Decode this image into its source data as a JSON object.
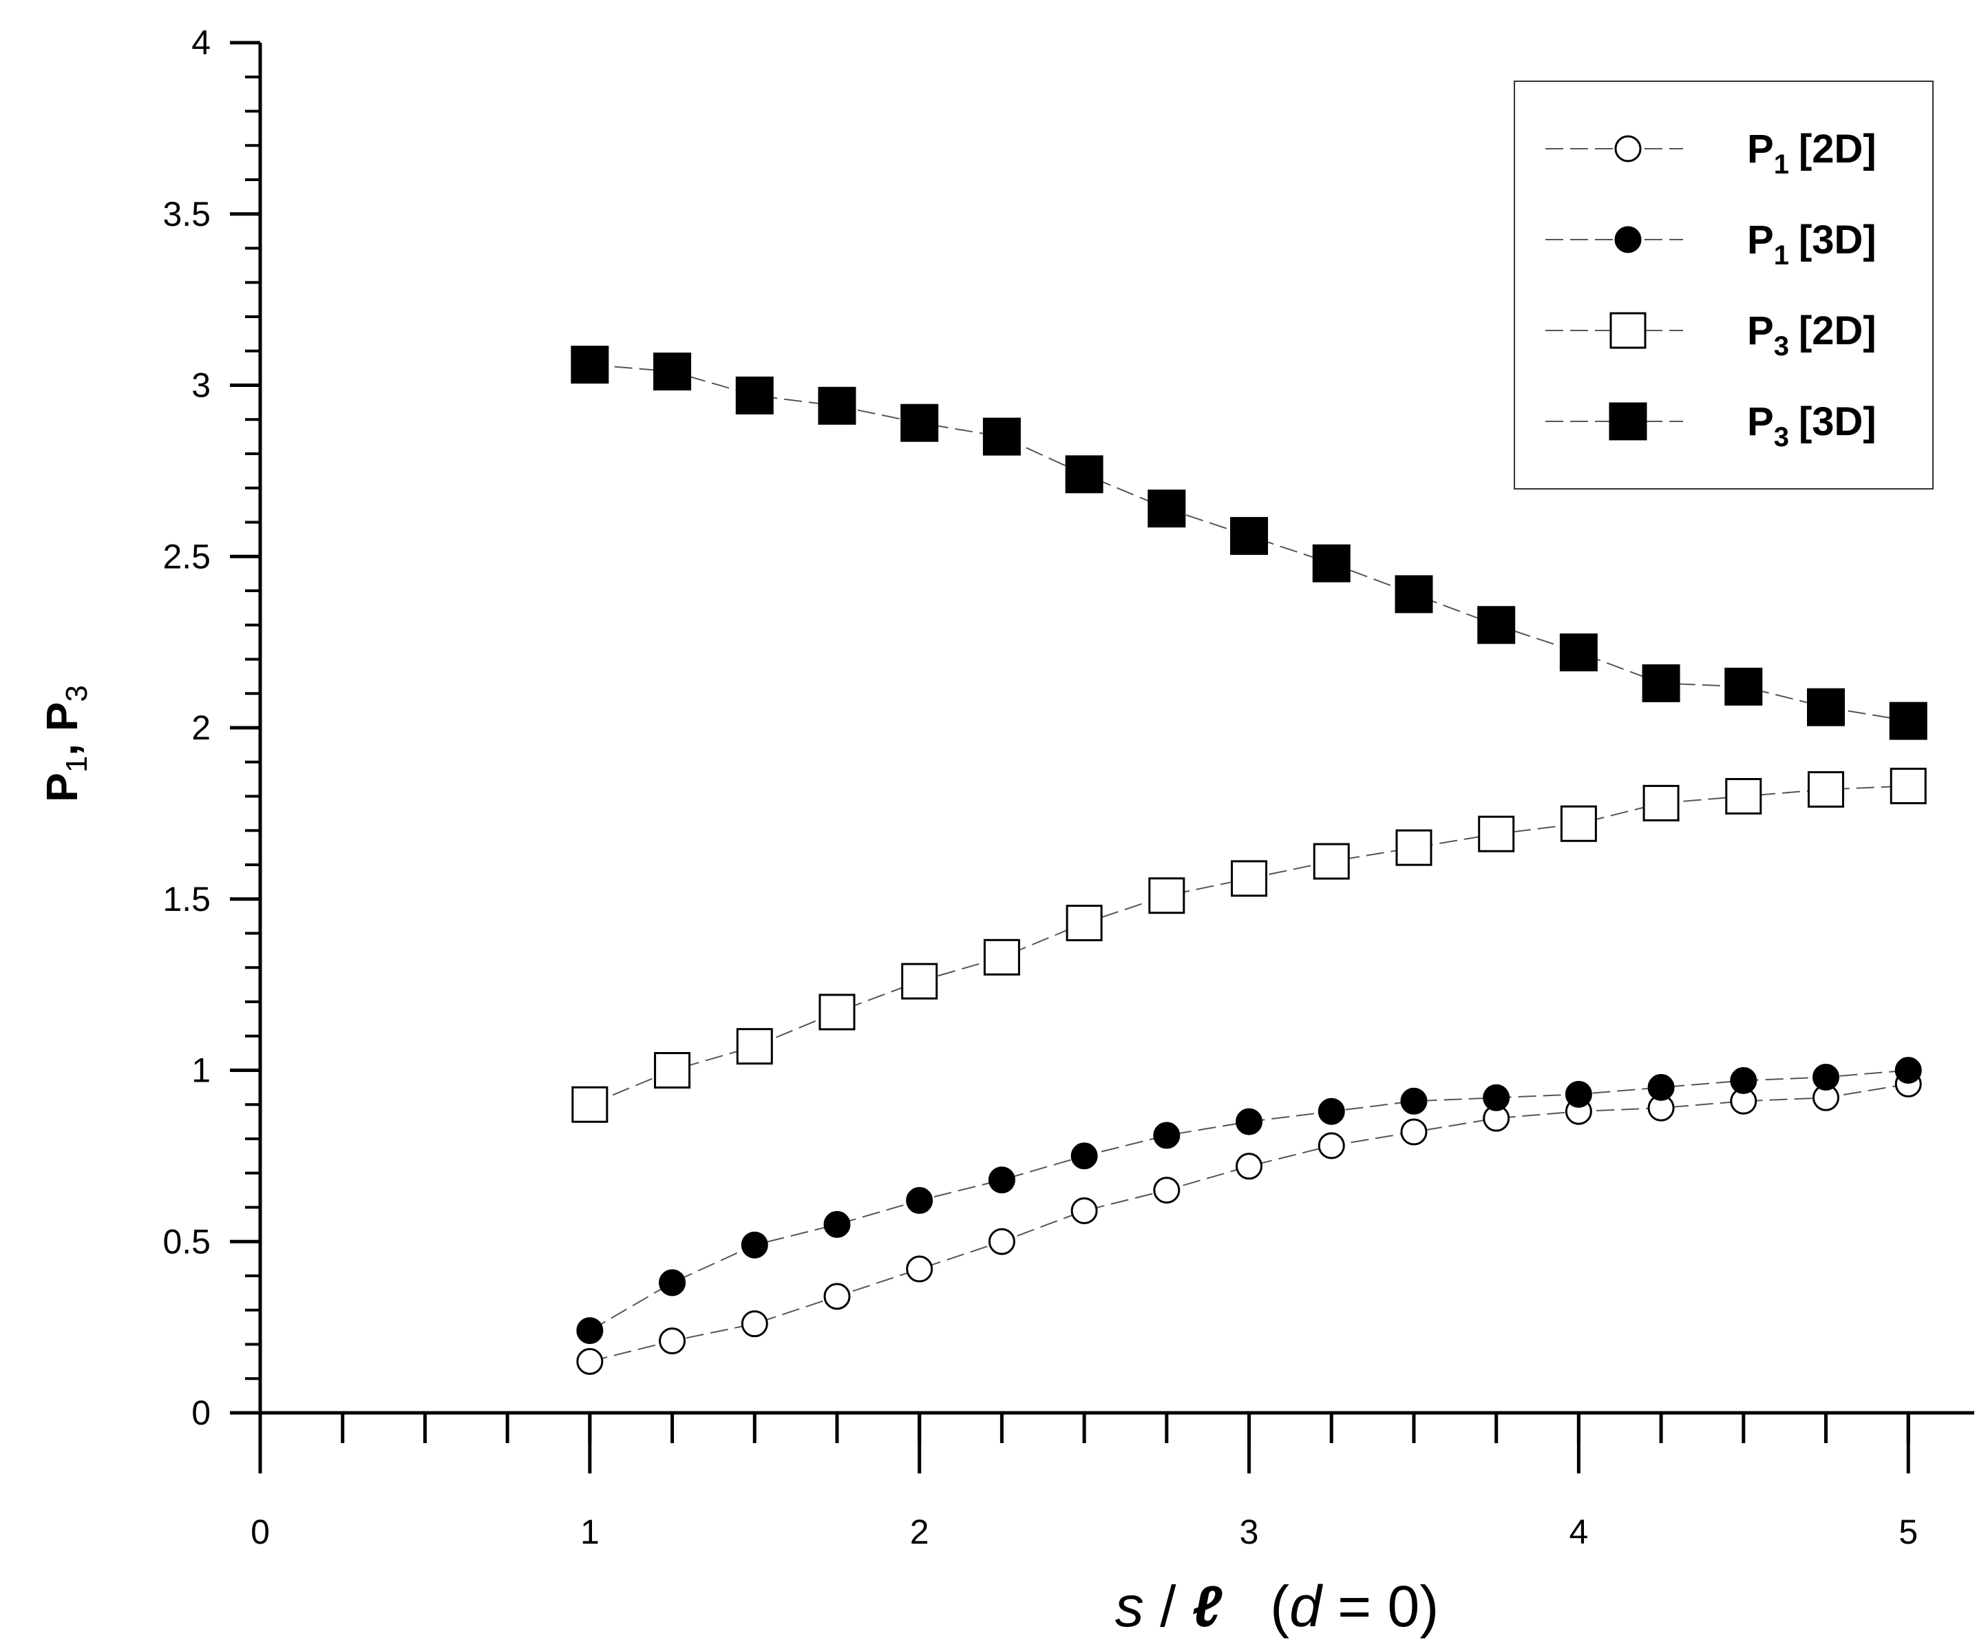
{
  "chart_data": {
    "type": "scatter",
    "title": "",
    "xlabel": {
      "var": "s",
      "sep": "/",
      "denom": "ℓ",
      "cond_open": "(",
      "cond_var": "d",
      "cond_rest": "= 0)"
    },
    "ylabel": {
      "p1": "P",
      "p1_sub": "1",
      "comma": ",",
      "p3": "P",
      "p3_sub": "3"
    },
    "xlim": [
      0,
      5.2
    ],
    "ylim": [
      0,
      4
    ],
    "x_ticks": [
      {
        "value": 0,
        "label": "0"
      },
      {
        "value": 1,
        "label": "1"
      },
      {
        "value": 2,
        "label": "2"
      },
      {
        "value": 3,
        "label": "3"
      },
      {
        "value": 4,
        "label": "4"
      },
      {
        "value": 5,
        "label": "5"
      }
    ],
    "x_minor_step": 0.25,
    "y_ticks": [
      {
        "value": 0,
        "label": "0"
      },
      {
        "value": 0.5,
        "label": "0.5"
      },
      {
        "value": 1,
        "label": "1"
      },
      {
        "value": 1.5,
        "label": "1.5"
      },
      {
        "value": 2,
        "label": "2"
      },
      {
        "value": 2.5,
        "label": "2.5"
      },
      {
        "value": 3,
        "label": "3"
      },
      {
        "value": 3.5,
        "label": "3.5"
      },
      {
        "value": 4,
        "label": "4"
      }
    ],
    "y_minor_step": 0.1,
    "grid": false,
    "legend_position": "top-right",
    "x": [
      1,
      1.25,
      1.5,
      1.75,
      2,
      2.25,
      2.5,
      2.75,
      3,
      3.25,
      3.5,
      3.75,
      4,
      4.25,
      4.5,
      4.75,
      5
    ],
    "series": [
      {
        "name": "P1 [2D]",
        "label_main": "P",
        "label_sub": "1",
        "label_tag": "[2D]",
        "marker": "circle-open",
        "values": [
          0.15,
          0.21,
          0.26,
          0.34,
          0.42,
          0.5,
          0.59,
          0.65,
          0.72,
          0.78,
          0.82,
          0.86,
          0.88,
          0.89,
          0.91,
          0.92,
          0.96
        ]
      },
      {
        "name": "P1 [3D]",
        "label_main": "P",
        "label_sub": "1",
        "label_tag": "[3D]",
        "marker": "circle-filled",
        "values": [
          0.24,
          0.38,
          0.49,
          0.55,
          0.62,
          0.68,
          0.75,
          0.81,
          0.85,
          0.88,
          0.91,
          0.92,
          0.93,
          0.95,
          0.97,
          0.98,
          1.0
        ]
      },
      {
        "name": "P3 [2D]",
        "label_main": "P",
        "label_sub": "3",
        "label_tag": "[2D]",
        "marker": "square-open",
        "values": [
          0.9,
          1.0,
          1.07,
          1.17,
          1.26,
          1.33,
          1.43,
          1.51,
          1.56,
          1.61,
          1.65,
          1.69,
          1.72,
          1.78,
          1.8,
          1.82,
          1.83
        ]
      },
      {
        "name": "P3 [3D]",
        "label_main": "P",
        "label_sub": "3",
        "label_tag": "[3D]",
        "marker": "square-filled",
        "values": [
          3.06,
          3.04,
          2.97,
          2.94,
          2.89,
          2.85,
          2.74,
          2.64,
          2.56,
          2.48,
          2.39,
          2.3,
          2.22,
          2.13,
          2.12,
          2.06,
          2.02
        ]
      }
    ],
    "colors": {
      "marker": "#000000",
      "line": "#555555",
      "background": "#ffffff"
    }
  }
}
